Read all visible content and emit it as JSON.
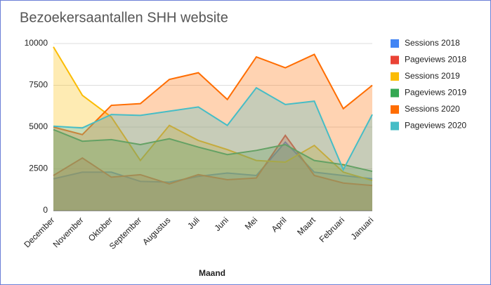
{
  "chart_data": {
    "type": "area",
    "title": "Bezoekersaantallen SHH website",
    "x_label": "Maand",
    "categories": [
      "December",
      "November",
      "Oktober",
      "September",
      "Augustus",
      "Juli",
      "Juni",
      "Mei",
      "April",
      "Maart",
      "Februari",
      "Januari"
    ],
    "series": [
      {
        "name": "Sessions 2018",
        "color": "#4285f4",
        "values": [
          1900,
          2300,
          2300,
          1750,
          1700,
          2050,
          2250,
          2100,
          4100,
          2300,
          2100,
          1900
        ]
      },
      {
        "name": "Pageviews 2018",
        "color": "#ea4335",
        "values": [
          2100,
          3150,
          2000,
          2150,
          1600,
          2150,
          1850,
          1950,
          4500,
          2100,
          1650,
          1500
        ]
      },
      {
        "name": "Sessions 2019",
        "color": "#fbbc04",
        "values": [
          9800,
          6900,
          5600,
          3000,
          5100,
          4200,
          3650,
          3000,
          2900,
          3900,
          2300,
          1800
        ]
      },
      {
        "name": "Pageviews 2019",
        "color": "#34a853",
        "values": [
          4850,
          4150,
          4250,
          3950,
          4300,
          3800,
          3350,
          3600,
          3950,
          3000,
          2750,
          2350
        ]
      },
      {
        "name": "Sessions 2020",
        "color": "#ff6d01",
        "values": [
          5000,
          4550,
          6300,
          6400,
          7850,
          8250,
          6650,
          9200,
          8550,
          9350,
          6100,
          7500
        ]
      },
      {
        "name": "Pageviews 2020",
        "color": "#46bdc6",
        "values": [
          5050,
          4950,
          5750,
          5700,
          5950,
          6200,
          5100,
          7350,
          6350,
          6550,
          2450,
          5750
        ]
      }
    ],
    "ylim": [
      0,
      10000
    ],
    "yticks": [
      0,
      2500,
      5000,
      7500,
      10000
    ],
    "grid": true,
    "legend": "right"
  }
}
